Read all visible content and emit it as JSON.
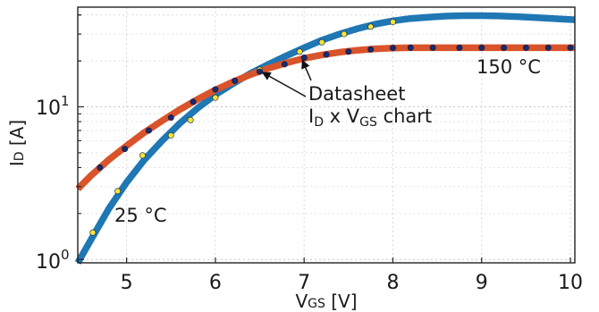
{
  "chart_data": {
    "type": "line",
    "title": "",
    "xlabel": {
      "main": "V",
      "sub": "GS",
      "unit": " [V]"
    },
    "ylabel": {
      "main": "I",
      "sub": "D",
      "unit": " [A]"
    },
    "xlim": [
      4.45,
      10.05
    ],
    "ylim": [
      0.95,
      45
    ],
    "y_scale": "log",
    "grid": true,
    "x_ticks": [
      {
        "value": 5,
        "label": "5"
      },
      {
        "value": 6,
        "label": "6"
      },
      {
        "value": 7,
        "label": "7"
      },
      {
        "value": 8,
        "label": "8"
      },
      {
        "value": 9,
        "label": "9"
      },
      {
        "value": 10,
        "label": "10"
      }
    ],
    "y_ticks": [
      {
        "value": 1,
        "base": "10",
        "exp": "0"
      },
      {
        "value": 10,
        "base": "10",
        "exp": "1"
      }
    ],
    "series": [
      {
        "color": "#1f77b4",
        "x": [
          4.45,
          4.6,
          4.8,
          5.0,
          5.2,
          5.4,
          5.6,
          5.8,
          6.0,
          6.2,
          6.4,
          6.6,
          6.8,
          7.0,
          7.2,
          7.4,
          7.6,
          7.8,
          8.0,
          8.2,
          8.4,
          8.6,
          8.8,
          9.0,
          9.2,
          9.4,
          9.6,
          9.8,
          10.05
        ],
        "y": [
          0.92,
          1.35,
          2.15,
          3.2,
          4.5,
          6.0,
          7.8,
          9.8,
          12.0,
          14.2,
          16.6,
          19.0,
          21.6,
          24.4,
          27.3,
          30.0,
          32.5,
          34.8,
          36.6,
          37.9,
          38.7,
          39.3,
          39.6,
          39.6,
          39.4,
          39.0,
          38.5,
          37.9,
          37.2
        ]
      },
      {
        "color": "#d9542b",
        "x": [
          4.45,
          4.6,
          4.8,
          5.0,
          5.2,
          5.4,
          5.6,
          5.8,
          6.0,
          6.2,
          6.4,
          6.6,
          6.8,
          7.0,
          7.2,
          7.4,
          7.6,
          7.8,
          8.0,
          8.2,
          8.4,
          8.6,
          8.8,
          9.0,
          9.2,
          9.4,
          9.6,
          9.8,
          10.05
        ],
        "y": [
          2.9,
          3.55,
          4.5,
          5.55,
          6.8,
          8.1,
          9.6,
          11.2,
          12.9,
          14.6,
          16.3,
          17.9,
          19.4,
          20.8,
          21.9,
          22.8,
          23.5,
          24.0,
          24.3,
          24.4,
          24.4,
          24.4,
          24.4,
          24.4,
          24.4,
          24.4,
          24.4,
          24.4,
          24.4
        ]
      }
    ],
    "points": [
      {
        "color": "#f2e33c",
        "x": [
          4.62,
          4.9,
          5.18,
          5.5,
          5.72,
          6.0,
          6.22,
          6.5,
          6.95,
          7.2,
          7.45,
          7.75,
          8.0
        ],
        "y": [
          1.5,
          2.8,
          4.8,
          6.5,
          8.2,
          11.5,
          14.8,
          17.5,
          23.0,
          26.5,
          30.0,
          33.5,
          36.0
        ]
      },
      {
        "color": "#1b2a6b",
        "x": [
          4.7,
          4.98,
          5.25,
          5.5,
          5.75,
          6.0,
          6.22,
          6.5,
          6.78,
          7.0,
          7.25,
          7.5,
          7.75,
          8.0,
          8.2,
          8.45,
          8.75,
          9.0,
          9.25,
          9.5,
          9.75,
          10.0
        ],
        "y": [
          4.0,
          5.3,
          7.0,
          8.5,
          10.8,
          13.0,
          14.8,
          17.0,
          19.0,
          21.0,
          22.0,
          23.0,
          23.8,
          24.3,
          24.4,
          24.4,
          24.4,
          24.4,
          24.4,
          24.4,
          24.4,
          24.4
        ]
      }
    ],
    "annotations": {
      "label_25": "25 °C",
      "label_150": "150 °C",
      "datasheet_line1": "Datasheet",
      "datasheet_line2_a": "I",
      "datasheet_line2_sub1": "D",
      "datasheet_line2_b": " x V",
      "datasheet_line2_sub2": "GS",
      "datasheet_line2_c": " chart",
      "arrow_targets": [
        {
          "x": 6.5,
          "y": 17.5
        },
        {
          "x": 6.95,
          "y": 21.0
        }
      ]
    }
  }
}
